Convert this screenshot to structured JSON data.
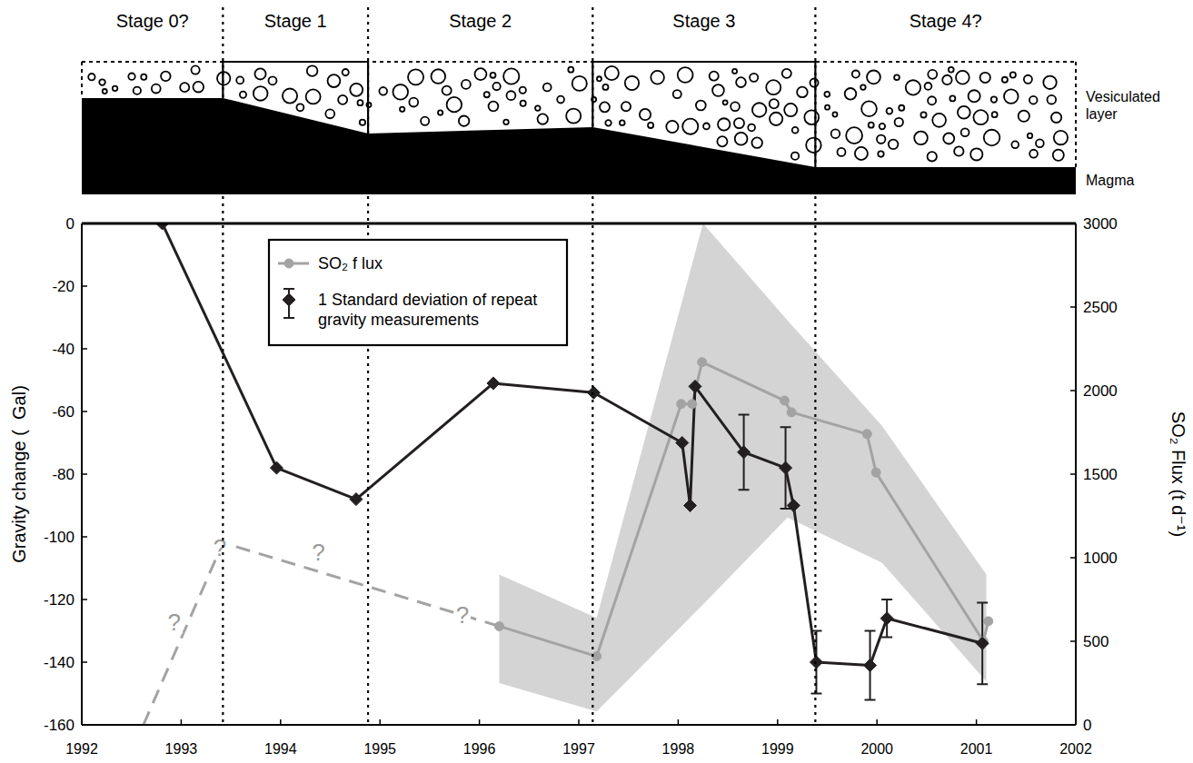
{
  "chart_data": {
    "type": "line",
    "y_label": "Gravity change (  Gal)",
    "y2_label": "SO₂ Flux (t d⁻¹)",
    "xlim": [
      1992,
      2002
    ],
    "xticks": [
      1992,
      1993,
      1994,
      1995,
      1996,
      1997,
      1998,
      1999,
      2000,
      2001,
      2002
    ],
    "ylim": [
      -160,
      0
    ],
    "yticks": [
      -160,
      -140,
      -120,
      -100,
      -80,
      -60,
      -40,
      -20,
      0
    ],
    "y2lim": [
      0,
      3000
    ],
    "y2ticks": [
      0,
      500,
      1000,
      1500,
      2000,
      2500,
      3000
    ],
    "legend": "upper left",
    "series": [
      {
        "name": "SO₂ f lux",
        "color": "#a3a3a3",
        "marker": "circle",
        "line_style": "solid",
        "axis": "y2",
        "x": [
          1996.2,
          1997.18,
          1998.03,
          1998.14,
          1998.24,
          1999.07,
          1999.14,
          1999.9,
          1999.99,
          2001.07,
          2001.12
        ],
        "values": [
          590,
          410,
          1920,
          1920,
          2170,
          1940,
          1870,
          1740,
          1510,
          500,
          620
        ]
      },
      {
        "color": "#a3a3a3",
        "line_style": "dashed",
        "axis": "y2",
        "x": [
          1992.62,
          1993.42,
          1996.2
        ],
        "values": [
          0,
          1090,
          590
        ]
      },
      {
        "type": "band",
        "color": "#d4d4d4",
        "axis": "y2",
        "x": [
          1996.2,
          1997.18,
          1998.25,
          1999.1,
          2000.05,
          2001.1
        ],
        "values": [
          900,
          640,
          3000,
          2420,
          1790,
          900
        ],
        "low": [
          250,
          80,
          720,
          1240,
          970,
          260
        ]
      },
      {
        "name": "1 Standard deviation of repeat gravity measurements",
        "color": "#231f20",
        "marker": "diamond",
        "line_style": "solid",
        "x": [
          1992.81,
          1993.96,
          1994.76,
          1996.14,
          1997.15,
          1998.04,
          1998.12,
          1998.17,
          1998.66,
          1999.08,
          1999.16,
          1999.39,
          1999.93,
          2000.1,
          2001.06
        ],
        "values": [
          0,
          -78,
          -88,
          -51,
          -54,
          -70,
          -90,
          -52,
          -73,
          -78,
          -90,
          -140,
          -141,
          -126,
          -134
        ],
        "error": [
          null,
          null,
          null,
          null,
          null,
          null,
          null,
          null,
          12,
          13,
          null,
          10,
          11,
          6,
          13
        ]
      }
    ],
    "annotations": [
      {
        "text": "?",
        "x": 1992.93,
        "y": 614,
        "axis": "y2"
      },
      {
        "text": "?",
        "x": 1993.39,
        "y": 1060,
        "axis": "y2"
      },
      {
        "text": "?",
        "x": 1994.38,
        "y": 1030,
        "axis": "y2"
      },
      {
        "text": "?",
        "x": 1995.83,
        "y": 660,
        "axis": "y2"
      }
    ],
    "schematic": {
      "stages": [
        "Stage 0?",
        "Stage 1",
        "Stage 2",
        "Stage 3",
        "Stage 4?"
      ],
      "boundaries": [
        1993.42,
        1994.88,
        1997.14,
        1999.38
      ],
      "layers": [
        "Vesiculated layer",
        "Magma"
      ]
    }
  }
}
